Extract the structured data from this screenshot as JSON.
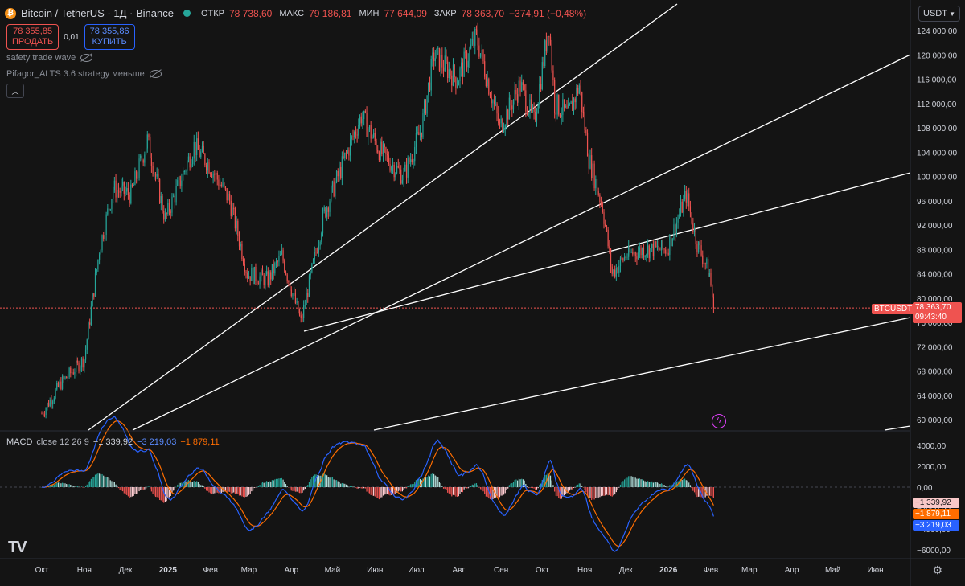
{
  "header": {
    "symbol_title": "Bitcoin / TetherUS · 1Д · Binance",
    "open_label": "ОТКР",
    "open_value": "78 738,60",
    "high_label": "МАКС",
    "high_value": "79 186,81",
    "low_label": "МИН",
    "low_value": "77 644,09",
    "close_label": "ЗАКР",
    "close_value": "78 363,70",
    "change": "−374,91 (−0,48%)"
  },
  "trade": {
    "sell_price": "78 355,85",
    "sell_label": "ПРОДАТЬ",
    "spread": "0,01",
    "buy_price": "78 355,86",
    "buy_label": "КУПИТЬ"
  },
  "indicators": [
    "safety trade wave",
    "Pifagor_ALTS 3.6 strategy меньше"
  ],
  "currency_selector": "USDT",
  "price_axis": {
    "labels": [
      "124 000,00",
      "120 000,00",
      "116 000,00",
      "112 000,00",
      "108 000,00",
      "104 000,00",
      "100 000,00",
      "96 000,00",
      "92 000,00",
      "88 000,00",
      "84 000,00",
      "80 000,00",
      "76 000,00",
      "72 000,00",
      "68 000,00",
      "64 000,00",
      "60 000,00"
    ],
    "values": [
      124000,
      120000,
      116000,
      112000,
      108000,
      104000,
      100000,
      96000,
      92000,
      88000,
      84000,
      80000,
      76000,
      72000,
      68000,
      64000,
      60000
    ]
  },
  "current_price": {
    "symbol_tag": "BTCUSDT",
    "price": "78 363,70",
    "countdown": "09:43:40",
    "value": 78363.7
  },
  "macd": {
    "legend_name": "MACD",
    "legend_params": "close 12 26 9",
    "histogram_value": "−1 339,92",
    "macd_value": "−3 219,03",
    "signal_value": "−1 879,11",
    "axis_labels": [
      "4000,00",
      "2000,00",
      "0,00",
      "−2000,00",
      "−4000,00",
      "−6000,00"
    ],
    "axis_values": [
      4000,
      2000,
      0,
      -2000,
      -4000,
      -6000
    ],
    "hist_num": -1339.92,
    "macd_num": -3219.03,
    "signal_num": -1879.11
  },
  "time_axis": [
    "Окт",
    "Ноя",
    "Дек",
    "2025",
    "Фев",
    "Мар",
    "Апр",
    "Май",
    "Июн",
    "Июл",
    "Авг",
    "Сен",
    "Окт",
    "Ноя",
    "Дек",
    "2026",
    "Фев",
    "Мар",
    "Апр",
    "Май",
    "Июн"
  ],
  "colors": {
    "up": "#26a69a",
    "down": "#ef5350",
    "macd_line": "#2962ff",
    "signal_line": "#ff6d00",
    "background": "#141414"
  },
  "chart_data": {
    "type": "candlestick",
    "keypoints_close": [
      [
        "2024-10-01",
        61000
      ],
      [
        "2024-10-15",
        66000
      ],
      [
        "2024-11-01",
        70000
      ],
      [
        "2024-11-12",
        88000
      ],
      [
        "2024-11-22",
        98000
      ],
      [
        "2024-12-05",
        97000
      ],
      [
        "2024-12-17",
        106000
      ],
      [
        "2024-12-30",
        93000
      ],
      [
        "2025-01-20",
        105000
      ],
      [
        "2025-01-31",
        102000
      ],
      [
        "2025-02-15",
        96000
      ],
      [
        "2025-02-28",
        84000
      ],
      [
        "2025-03-15",
        83000
      ],
      [
        "2025-03-25",
        87000
      ],
      [
        "2025-04-08",
        76000
      ],
      [
        "2025-04-25",
        94000
      ],
      [
        "2025-05-10",
        103000
      ],
      [
        "2025-05-22",
        110000
      ],
      [
        "2025-06-05",
        104000
      ],
      [
        "2025-06-22",
        100000
      ],
      [
        "2025-07-05",
        108000
      ],
      [
        "2025-07-14",
        120000
      ],
      [
        "2025-07-31",
        116000
      ],
      [
        "2025-08-14",
        123000
      ],
      [
        "2025-08-31",
        108000
      ],
      [
        "2025-09-15",
        115000
      ],
      [
        "2025-09-25",
        109000
      ],
      [
        "2025-10-06",
        125000
      ],
      [
        "2025-10-10",
        112000
      ],
      [
        "2025-10-20",
        110000
      ],
      [
        "2025-10-28",
        115000
      ],
      [
        "2025-11-04",
        103000
      ],
      [
        "2025-11-14",
        95000
      ],
      [
        "2025-11-21",
        84000
      ],
      [
        "2025-12-01",
        87000
      ],
      [
        "2025-12-15",
        88000
      ],
      [
        "2025-12-31",
        88000
      ],
      [
        "2026-01-14",
        97000
      ],
      [
        "2026-01-22",
        89000
      ],
      [
        "2026-01-31",
        84000
      ],
      [
        "2026-02-03",
        78363.7
      ]
    ]
  }
}
